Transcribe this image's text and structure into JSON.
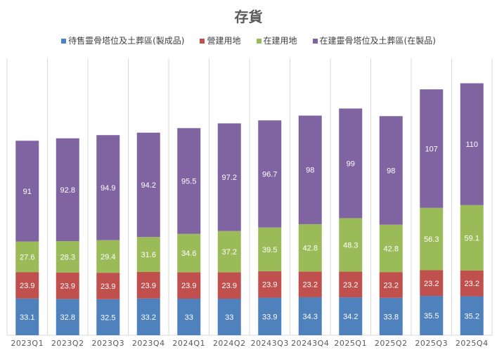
{
  "chart_data": {
    "type": "bar",
    "stacked": true,
    "title": "存貨",
    "categories": [
      "2023Q1",
      "2023Q2",
      "2023Q3",
      "2023Q4",
      "2024Q1",
      "2024Q2",
      "20243Q3",
      "20243Q4",
      "2025Q1",
      "2025Q2",
      "2025Q3",
      "2025Q4"
    ],
    "series": [
      {
        "name": "待售靈骨塔位及土葬區(製成品)",
        "color": "#4f81bd",
        "values": [
          33.1,
          32.8,
          32.5,
          33.2,
          33,
          33,
          33.9,
          34.3,
          34.2,
          33.8,
          35.5,
          35.2
        ]
      },
      {
        "name": "營建用地",
        "color": "#c0504d",
        "values": [
          23.9,
          23.9,
          23.9,
          23.9,
          23.9,
          23.9,
          23.9,
          23.2,
          23.2,
          23.2,
          23.2,
          23.2
        ]
      },
      {
        "name": "在建用地",
        "color": "#9bbb59",
        "values": [
          27.6,
          28.3,
          29.4,
          31.6,
          34.6,
          37.2,
          39.5,
          42.8,
          48.3,
          42.8,
          56.3,
          59.1
        ]
      },
      {
        "name": "在建靈骨塔位及土葬區(在製品)",
        "color": "#8064a2",
        "values": [
          91,
          92.8,
          94.9,
          94.2,
          95.5,
          97.2,
          96.7,
          98,
          99,
          98,
          107,
          110
        ]
      }
    ],
    "ylim": [
      0,
      250
    ],
    "grid": "vertical category separators",
    "legend": "top",
    "data_labels": true
  }
}
